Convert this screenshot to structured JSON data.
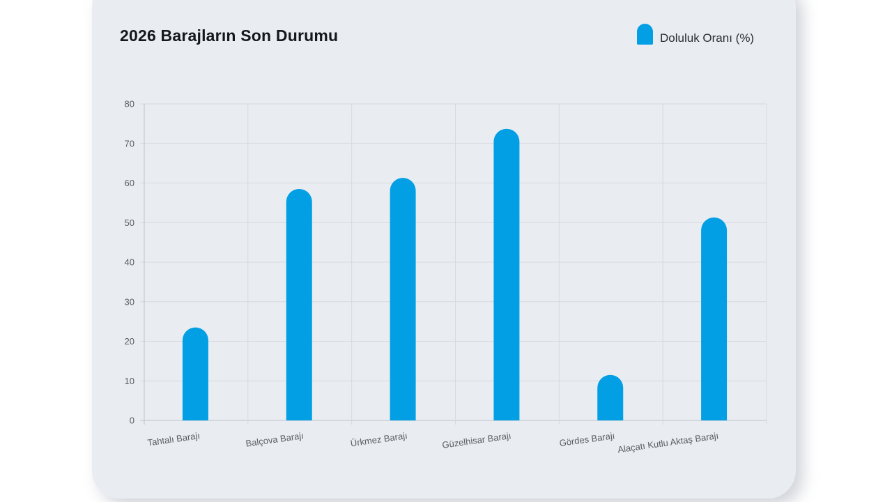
{
  "chart_data": {
    "type": "bar",
    "title": "2026 Barajların Son Durumu",
    "categories": [
      "Tahtalı Barajı",
      "Balçova Barajı",
      "Ürkmez Barajı",
      "Güzelhisar Barajı",
      "Gördes Barajı",
      "Alaçatı Kutlu Aktaş Barajı"
    ],
    "series": [
      {
        "name": "Doluluk Oranı (%)",
        "values": [
          23.5,
          58.5,
          61.3,
          73.7,
          11.5,
          51.3
        ],
        "color": "#039fe5"
      }
    ],
    "ylim": [
      0,
      80
    ],
    "yticks": [
      "0",
      "10",
      "20",
      "30",
      "40",
      "50",
      "60",
      "70",
      "80"
    ],
    "grid": true,
    "legend_position": "top-right"
  }
}
